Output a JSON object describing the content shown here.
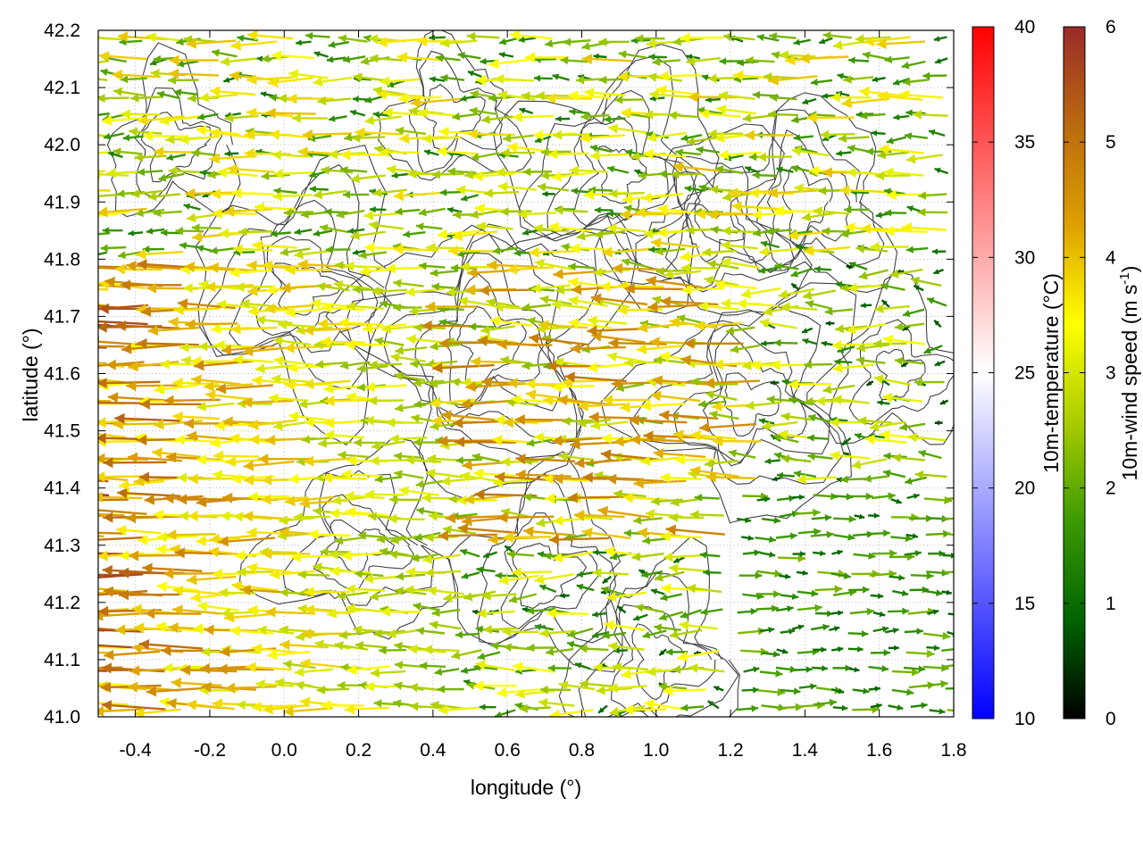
{
  "chart_data": {
    "type": "vector-field",
    "title": "",
    "xlabel": "longitude (°)",
    "ylabel": "latitude (°)",
    "xlim": [
      -0.5,
      1.8
    ],
    "ylim": [
      41.0,
      42.2
    ],
    "xticks": [
      "-0.4",
      "-0.2",
      "0.0",
      "0.2",
      "0.4",
      "0.6",
      "0.8",
      "1.0",
      "1.2",
      "1.4",
      "1.6",
      "1.8"
    ],
    "yticks": [
      "41.0",
      "41.1",
      "41.2",
      "41.3",
      "41.4",
      "41.5",
      "41.6",
      "41.7",
      "41.8",
      "41.9",
      "42.0",
      "42.1",
      "42.2"
    ],
    "grid": true,
    "colorbars": [
      {
        "label": "10m-temperature (°C)",
        "range": [
          10,
          40
        ],
        "ticks": [
          "10",
          "15",
          "20",
          "25",
          "30",
          "35",
          "40"
        ],
        "colors": [
          "#0000ff",
          "#ffffff",
          "#ff0000"
        ]
      },
      {
        "label": "10m-wind speed (m s",
        "label_sup": "-1",
        "label_end": ")",
        "range": [
          0,
          6
        ],
        "ticks": [
          "0",
          "1",
          "2",
          "3",
          "4",
          "5",
          "6"
        ],
        "colors": [
          "#000000",
          "#006400",
          "#3c9a00",
          "#aacc00",
          "#ffff00",
          "#dda000",
          "#bb6a10",
          "#9a2a2a"
        ]
      }
    ],
    "vector_regions": [
      {
        "region": "west",
        "lon_range": [
          -0.5,
          0.5
        ],
        "lat_range": [
          41.0,
          41.8
        ],
        "direction": "westward",
        "speed_ms": [
          3,
          6
        ]
      },
      {
        "region": "north",
        "lon_range": [
          -0.5,
          1.8
        ],
        "lat_range": [
          41.8,
          42.2
        ],
        "direction": "westward",
        "speed_ms": [
          1,
          4
        ]
      },
      {
        "region": "central",
        "lon_range": [
          0.5,
          1.3
        ],
        "lat_range": [
          41.3,
          41.8
        ],
        "direction": "westward",
        "speed_ms": [
          2,
          5
        ]
      },
      {
        "region": "southeast",
        "lon_range": [
          1.2,
          1.8
        ],
        "lat_range": [
          41.0,
          41.4
        ],
        "direction": "eastward",
        "speed_ms": [
          0.5,
          2.5
        ]
      }
    ],
    "colors": {
      "contour": "#404040",
      "grid": "#bbbbbb",
      "frame": "#000000"
    }
  }
}
